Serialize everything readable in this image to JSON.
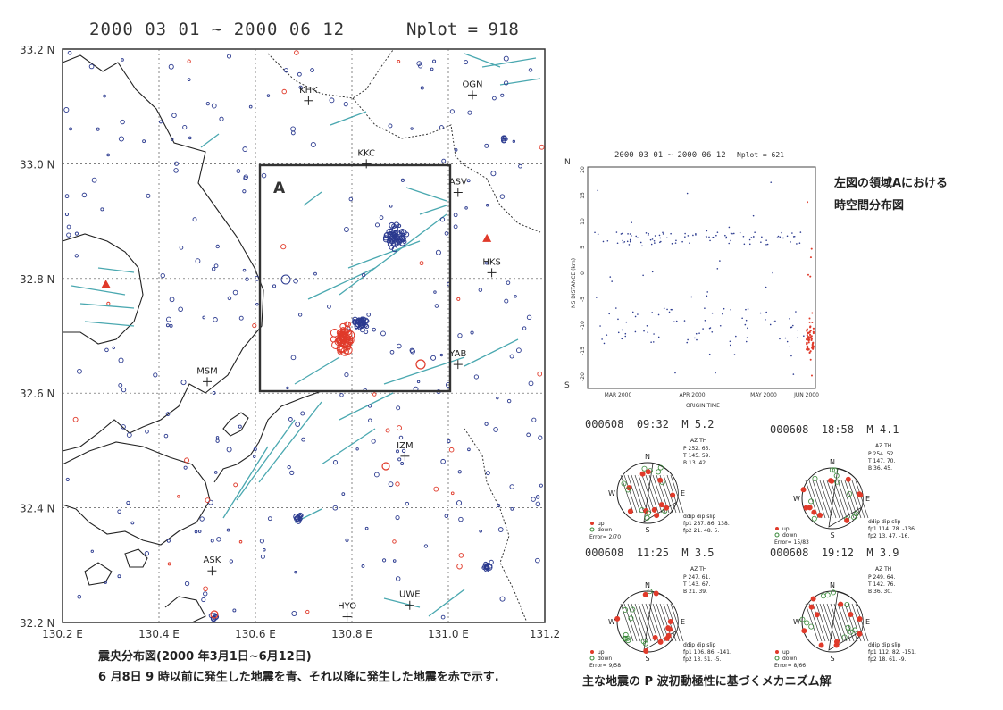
{
  "title": {
    "date_range": "2000 03 01 ~ 2000 06 12",
    "nplot": "Nplot = 918"
  },
  "map": {
    "lat_labels": [
      "33.2 N",
      "33.0 N",
      "32.8 N",
      "32.6 N",
      "32.4 N",
      "32.2 N"
    ],
    "lon_labels": [
      "130.2 E",
      "130.4 E",
      "130.6 E",
      "130.8 E",
      "131.0 E",
      "131.2"
    ],
    "region_label": "A",
    "stations": [
      {
        "name": "KHK",
        "lon": 130.71,
        "lat": 33.11
      },
      {
        "name": "OGN",
        "lon": 131.05,
        "lat": 33.12
      },
      {
        "name": "KKC",
        "lon": 130.83,
        "lat": 33.0
      },
      {
        "name": "ASV",
        "lon": 131.02,
        "lat": 32.95
      },
      {
        "name": "HKS",
        "lon": 131.09,
        "lat": 32.81
      },
      {
        "name": "MSM",
        "lon": 130.5,
        "lat": 32.62
      },
      {
        "name": "YAB",
        "lon": 131.02,
        "lat": 32.65
      },
      {
        "name": "IZM",
        "lon": 130.91,
        "lat": 32.49
      },
      {
        "name": "ASK",
        "lon": 130.51,
        "lat": 32.29
      },
      {
        "name": "HYO",
        "lon": 130.79,
        "lat": 32.21
      },
      {
        "name": "UWE",
        "lon": 130.92,
        "lat": 32.23
      }
    ],
    "triangles": [
      {
        "lon": 130.29,
        "lat": 32.79
      },
      {
        "lon": 131.08,
        "lat": 32.87
      }
    ],
    "before_color": "#2b3a8f",
    "after_color": "#e03a2a",
    "fault_color": "#4aa8b0"
  },
  "map_captions": {
    "line1": "震央分布図(2000 年3月1日~6月12日)",
    "line2": "6 月8日 9 時以前に発生した地震を青、それ以降に発生した地震を赤で示す."
  },
  "spacetime": {
    "header": "2000 03 01 ~ 2000 06 12",
    "nplot": "Nplot = 621",
    "ylabel": "NS DISTANCE (km)",
    "xlabel": "ORIGIN TIME",
    "y_ticks": [
      "20",
      "15",
      "10",
      "5",
      "0",
      "-5",
      "-10",
      "-15",
      "-20"
    ],
    "x_ticks": [
      "MAR 2000",
      "APR 2000",
      "MAY 2000",
      "JUN 2000"
    ],
    "top_marker": "N",
    "bottom_marker": "S",
    "caption_line1": "左図の領域Aにおける",
    "caption_line2": "時空間分布図"
  },
  "mechanisms": [
    {
      "id": "000608",
      "time": "09:32",
      "mag": "M 5.2",
      "p": "P 252. 65.",
      "t": "T 145. 59.",
      "b": "B 13. 42.",
      "fp1": "fp1 287. 86. 138.",
      "fp2": "fp2 21. 48. 5.",
      "error": "Error= 2/70"
    },
    {
      "id": "000608",
      "time": "18:58",
      "mag": "M 4.1",
      "p": "P 254. 52.",
      "t": "T 147. 70.",
      "b": "B 36. 45.",
      "fp1": "fp1 114. 78. -136.",
      "fp2": "fp2 13. 47. -16.",
      "error": "Error= 15/83"
    },
    {
      "id": "000608",
      "time": "11:25",
      "mag": "M 3.5",
      "p": "P 247. 61.",
      "t": "T 143. 67.",
      "b": "B 21. 39.",
      "fp1": "fp1 106. 86. -141.",
      "fp2": "fp2 13. 51. -5.",
      "error": "Error= 9/58"
    },
    {
      "id": "000608",
      "time": "19:12",
      "mag": "M 3.9",
      "p": "P 249. 64.",
      "t": "T 142. 76.",
      "b": "B 36. 30.",
      "fp1": "fp1 112. 82. -151.",
      "fp2": "fp2 18. 61. -9.",
      "error": "Error= 8/66"
    }
  ],
  "mech_labels": {
    "az_th": "AZ  TH",
    "legend_up": "up",
    "legend_down": "down",
    "plane_header": "ddip dip slip",
    "north": "N",
    "south": "S",
    "east": "E",
    "west": "W"
  },
  "mech_caption": "主な地震の P 波初動極性に基づくメカニズム解"
}
